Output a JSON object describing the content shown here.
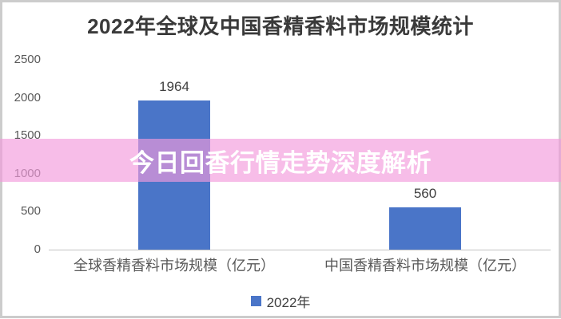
{
  "frame": {
    "border_color": "#cccccc",
    "background_color": "#ffffff"
  },
  "overlay": {
    "text": "今日回香行情走势深度解析",
    "text_color": "#ffffff",
    "background_color": "rgba(242,153,219,0.65)"
  },
  "chart_data": {
    "type": "bar",
    "title": "2022年全球及中国香精香料市场规模统计",
    "categories": [
      "全球香精香料市场规模（亿元）",
      "中国香精香料市场规模（亿元）"
    ],
    "values": [
      1964,
      560
    ],
    "data_labels": [
      "1964",
      "560"
    ],
    "series": [
      {
        "name": "2022年",
        "values": [
          1964,
          560
        ]
      }
    ],
    "legend": [
      "2022年"
    ],
    "legend_position": "bottom",
    "xlabel": "",
    "ylabel": "",
    "ylim": [
      0,
      2500
    ],
    "yticks": [
      "0",
      "500",
      "1000",
      "1500",
      "2000",
      "2500"
    ],
    "grid": false,
    "bar_color": "#4a75c8",
    "title_color": "#3a3a3a",
    "tick_color": "#595959",
    "axis_line_color": "#c3c3c3"
  }
}
